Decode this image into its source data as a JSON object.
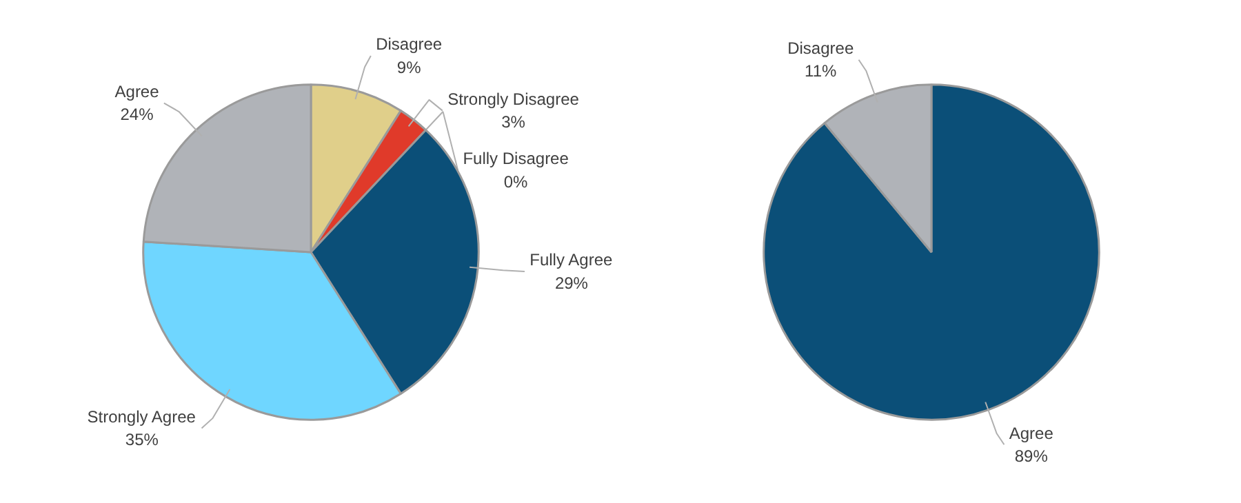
{
  "chart_data": [
    {
      "type": "pie",
      "categories": [
        "Disagree",
        "Strongly Disagree",
        "Fully Disagree",
        "Fully Agree",
        "Strongly Agree",
        "Agree"
      ],
      "values": [
        9,
        3,
        0,
        29,
        35,
        24
      ],
      "value_labels": [
        "9%",
        "3%",
        "0%",
        "29%",
        "35%",
        "24%"
      ],
      "colors": [
        "#e0cf8a",
        "#e03a2a",
        "#7f7f7f",
        "#0b4f78",
        "#6fd6ff",
        "#b0b3b8"
      ],
      "legend": false
    },
    {
      "type": "pie",
      "categories": [
        "Agree",
        "Disagree"
      ],
      "values": [
        89,
        11
      ],
      "value_labels": [
        "89%",
        "11%"
      ],
      "colors": [
        "#0b4f78",
        "#b0b3b8"
      ],
      "legend": false
    }
  ]
}
